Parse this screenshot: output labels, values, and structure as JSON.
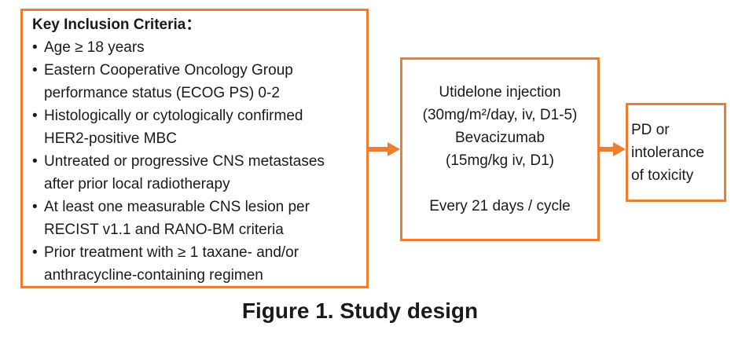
{
  "figure": {
    "caption": "Figure 1. Study design"
  },
  "colors": {
    "accent_orange": "#ED7D31",
    "text": "#1A1A1A",
    "background": "#FFFFFF"
  },
  "inclusion_box": {
    "title": "Key Inclusion Criteria：",
    "bullet_char": "•",
    "bullets": [
      "Age ≥ 18 years",
      "Eastern Cooperative Oncology Group\nperformance status (ECOG PS) 0-2",
      "Histologically or cytologically confirmed\nHER2-positive MBC",
      "Untreated or progressive CNS metastases\nafter prior local radiotherapy",
      "At least one measurable CNS lesion per\nRECIST v1.1 and RANO-BM criteria",
      "Prior treatment with ≥ 1 taxane- and/or\nanthracycline-containing regimen"
    ]
  },
  "treatment_box": {
    "lines": [
      "Utidelone injection",
      "(30mg/m²/day, iv, D1-5)",
      "Bevacizumab",
      "(15mg/kg iv, D1)",
      "",
      "Every 21 days / cycle"
    ]
  },
  "endpoint_box": {
    "text": "PD or\nintolerance\nof toxicity"
  }
}
